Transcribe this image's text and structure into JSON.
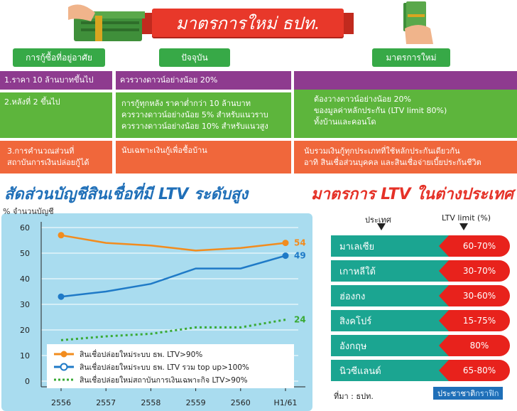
{
  "title": "มาตรการใหม่ ธปท.",
  "col_headers": {
    "topic": "การกู้ซื้อที่อยู่อาศัย",
    "current": "ปัจจุบัน",
    "new": "มาตรการใหม่"
  },
  "rows": [
    {
      "topic": "1.ราคา 10 ล้านบาทขึ้นไป",
      "current": [
        "ควรวางดาวน์อย่างน้อย 20%"
      ]
    },
    {
      "topic": "2.หลังที่ 2 ขึ้นไป",
      "current": [
        "การกู้ทุกหลัง ราคาต่ำกว่า 10 ล้านบาท",
        "ควรวางดาวน์อย่างน้อย 5% สำหรับแนวราบ",
        "ควรวางดาวน์อย่างน้อย 10% สำหรับแนวสูง"
      ]
    },
    {
      "topic": "3.การคำนวณส่วนที่ สถาบันการเงินปล่อยกู้ได้",
      "current": [
        "นับเฉพาะเงินกู้เพื่อซื้อบ้าน"
      ]
    }
  ],
  "new_measure": [
    "ต้องวางดาวน์อย่างน้อย 20%",
    "ของมูลค่าหลักประกัน (LTV limit 80%)",
    "ทั้งบ้านและคอนโด"
  ],
  "new_calc": [
    "นับรวมเงินกู้ทุกประเภทที่ใช้หลักประกันเดียวกัน",
    "อาทิ สินเชื่อส่วนบุคคล และสินเชื่อจ่ายเบี้ยประกันชีวิต"
  ],
  "left_heading": "สัดส่วนบัญชีสินเชื่อที่มี LTV ระดับสูง",
  "right_heading": "มาตรการ LTV ในต่างประเทศ",
  "chart_data": {
    "type": "line",
    "ylabel": "% จำนวนบัญชี",
    "categories": [
      "2556",
      "2557",
      "2558",
      "2559",
      "2560",
      "H1/61"
    ],
    "ylim": [
      0,
      60
    ],
    "yticks": [
      "0",
      "10",
      "20",
      "30",
      "40",
      "50",
      "60"
    ],
    "series": [
      {
        "name": "สินเชื่อปล่อยใหม่ระบบ ธพ. LTV>90%",
        "color": "#f28c1e",
        "style": "solid-dot",
        "values": [
          57,
          54,
          53,
          51,
          52,
          54
        ],
        "end_label": "54"
      },
      {
        "name": "สินเชื่อปล่อยใหม่ระบบ ธพ. LTV รวม top up>100%",
        "color": "#1f7ac7",
        "style": "solid-circle",
        "values": [
          33,
          35,
          38,
          44,
          44,
          49
        ],
        "end_label": "49"
      },
      {
        "name": "สินเชื่อปล่อยใหม่สถาบันการเงินเฉพาะกิจ LTV>90%",
        "color": "#3aaa35",
        "style": "dotted",
        "values": [
          16,
          17.5,
          18.5,
          21,
          21,
          24
        ],
        "end_label": "24"
      }
    ]
  },
  "ltv_table": {
    "col_country": "ประเทศ",
    "col_limit": "LTV limit (%)",
    "rows": [
      {
        "country": "มาเลเซีย",
        "limit": "60-70%"
      },
      {
        "country": "เกาหลีใต้",
        "limit": "30-70%"
      },
      {
        "country": "ฮ่องกง",
        "limit": "30-60%"
      },
      {
        "country": "สิงคโปร์",
        "limit": "15-75%"
      },
      {
        "country": "อังกฤษ",
        "limit": "80%"
      },
      {
        "country": "นิวซีแลนด์",
        "limit": "65-80%"
      }
    ]
  },
  "source": "ที่มา : ธปท.",
  "credit_a": "ประชาชาติ",
  "credit_b": "กราฟิก"
}
